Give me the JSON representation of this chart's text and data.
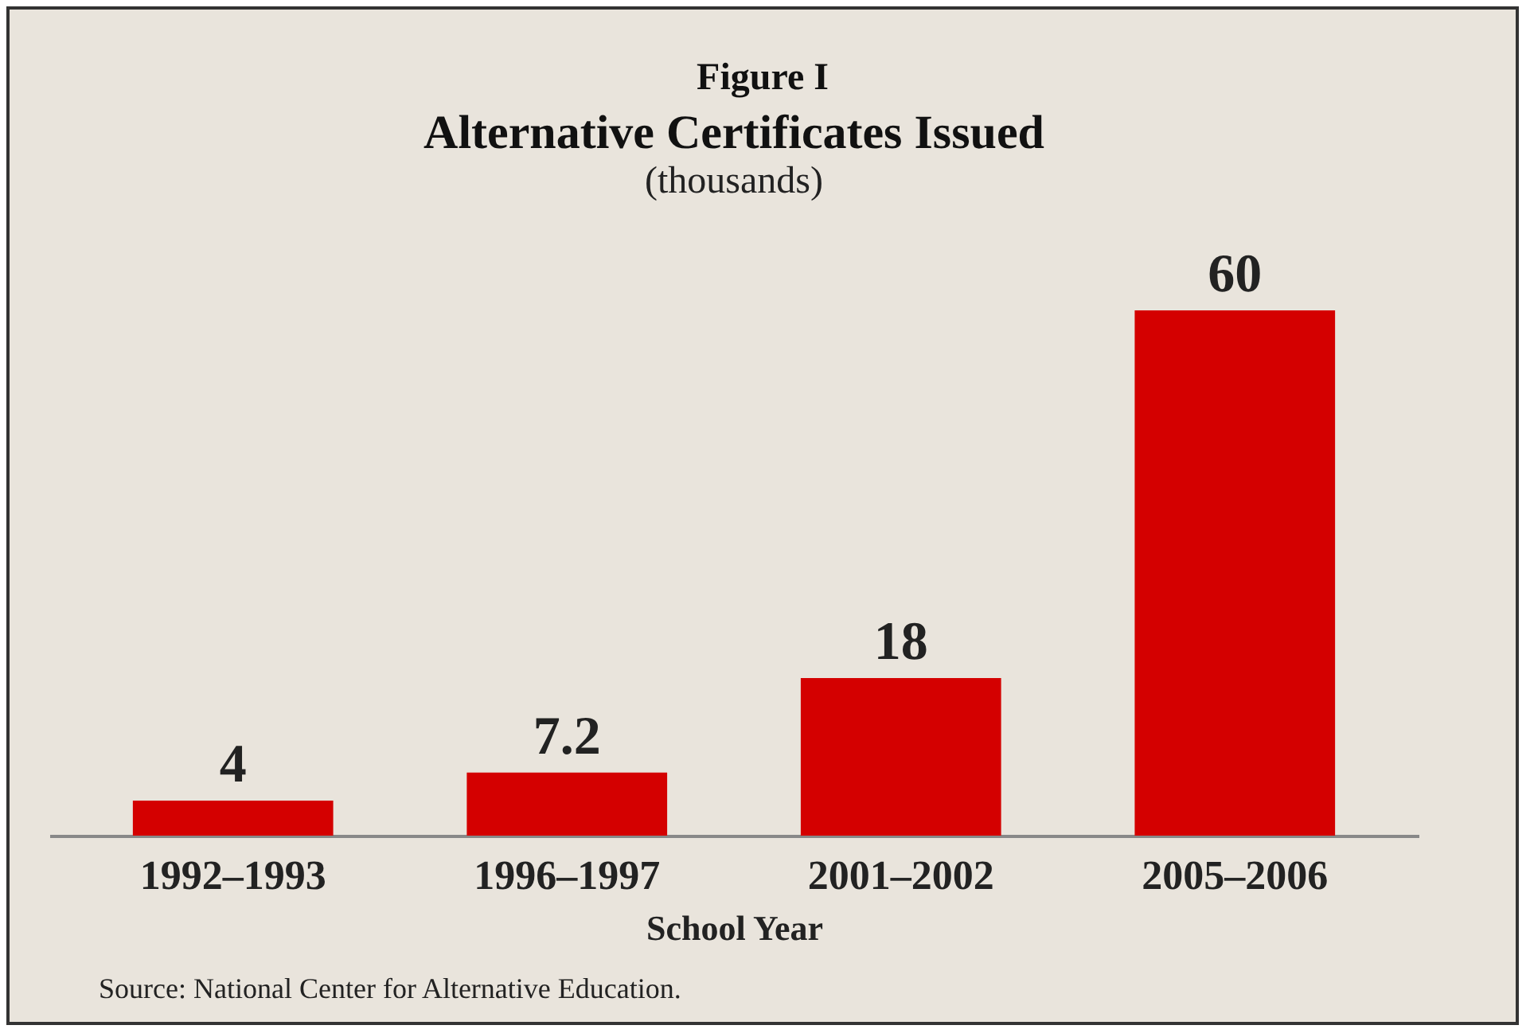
{
  "chart_data": {
    "type": "bar",
    "title": "Alternative Certificates Issued",
    "subtitle": "(thousands)",
    "xlabel": "School Year",
    "annotations": [
      "Figure I",
      "Source: National Center for Alternative Education."
    ],
    "categories": [
      "1992–1993",
      "1996–1997",
      "2001–2002",
      "2005–2006"
    ],
    "values": [
      4,
      7.2,
      18,
      60
    ],
    "color": "#d40000",
    "data_labels": true
  }
}
